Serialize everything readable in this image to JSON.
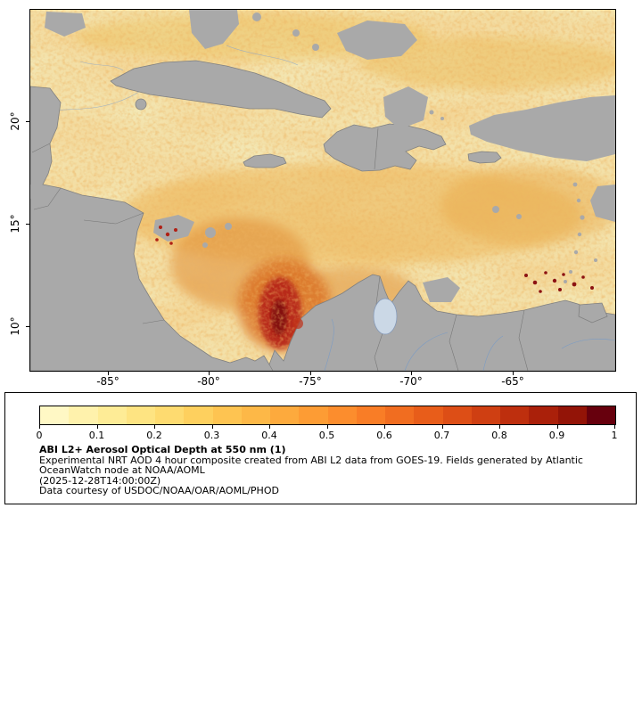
{
  "map": {
    "x_ticks": [
      "-85°",
      "-80°",
      "-75°",
      "-70°",
      "-65°"
    ],
    "y_ticks": [
      "20°",
      "15°",
      "10°"
    ],
    "ocean_color": "#F3E7B4",
    "land_color": "#A9A9A9",
    "plume_color": "#B21A12"
  },
  "colorbar": {
    "tick_labels": [
      "0",
      "0.1",
      "0.2",
      "0.3",
      "0.4",
      "0.5",
      "0.6",
      "0.7",
      "0.8",
      "0.9",
      "1"
    ],
    "colors": [
      "#FFF8C5",
      "#FFF2AC",
      "#FEEC96",
      "#FEE482",
      "#FEDB70",
      "#FED05E",
      "#FEC451",
      "#FDB847",
      "#FDAA3D",
      "#FD9C34",
      "#FC8D2D",
      "#F97D26",
      "#F16D20",
      "#E85D1A",
      "#DD4E16",
      "#CF3F12",
      "#BE2F0E",
      "#AA200A",
      "#931407",
      "#67000D"
    ]
  },
  "caption": {
    "title": "ABI L2+ Aerosol Optical Depth at 550 nm (1)",
    "line1": "Experimental NRT AOD 4 hour composite created from ABI L2 data from GOES-19. Fields generated by Atlantic",
    "line2": "OceanWatch node at NOAA/AOML",
    "line3": "(2025-12-28T14:00:00Z)",
    "line4": "Data courtesy of USDOC/NOAA/OAR/AOML/PHOD"
  }
}
